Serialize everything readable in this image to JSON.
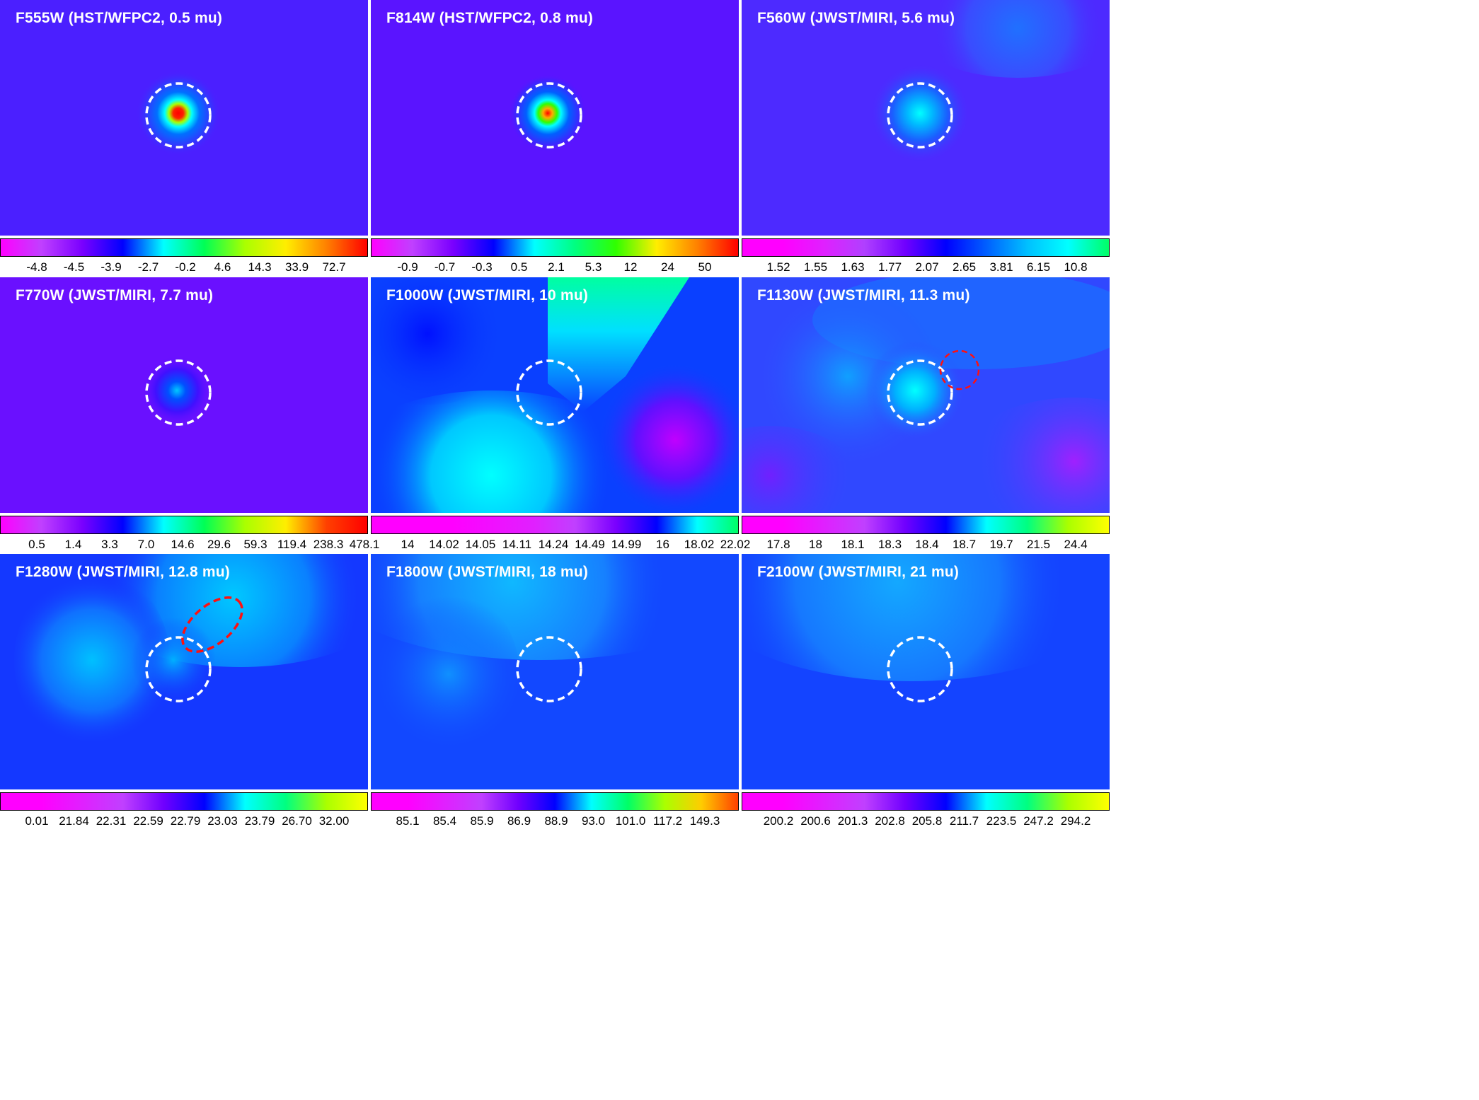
{
  "panels": [
    {
      "title": "F555W (HST/WFPC2, 0.5 mu)",
      "background": "#4b1fff",
      "colorbar": {
        "colors": [
          "#ff00ff",
          "#c040ff",
          "#7a00ff",
          "#0000ff",
          "#00ffff",
          "#00ff55",
          "#aaff00",
          "#ffee00",
          "#ff8000",
          "#ff0000"
        ],
        "ticks": [
          "-4.8",
          "-4.5",
          "-3.9",
          "-2.7",
          "-0.2",
          "4.6",
          "14.3",
          "33.9",
          "72.7"
        ]
      },
      "circles": [
        {
          "color": "white"
        }
      ]
    },
    {
      "title": "F814W (HST/WFPC2, 0.8 mu)",
      "background": "#5a14ff",
      "colorbar": {
        "colors": [
          "#ff00ff",
          "#c040ff",
          "#7a00ff",
          "#0000ff",
          "#00ffff",
          "#00ff80",
          "#30ff00",
          "#ffee00",
          "#ff8000",
          "#ff0000"
        ],
        "ticks": [
          "-0.9",
          "-0.7",
          "-0.3",
          "0.5",
          "2.1",
          "5.3",
          "12",
          "24",
          "50"
        ]
      },
      "circles": [
        {
          "color": "white"
        }
      ]
    },
    {
      "title": "F560W (JWST/MIRI, 5.6 mu)",
      "background": "#4d2aff",
      "colorbar": {
        "colors": [
          "#ff00ff",
          "#ff00ff",
          "#e020ff",
          "#b040ff",
          "#7000ff",
          "#0000ff",
          "#0060ff",
          "#00c0ff",
          "#00ffff",
          "#00ff66"
        ],
        "ticks": [
          "1.52",
          "1.55",
          "1.63",
          "1.77",
          "2.07",
          "2.65",
          "3.81",
          "6.15",
          "10.8"
        ]
      },
      "circles": [
        {
          "color": "white"
        }
      ]
    },
    {
      "title": "F770W (JWST/MIRI, 7.7 mu)",
      "background": "#6a10ff",
      "colorbar": {
        "colors": [
          "#ff00ff",
          "#c040ff",
          "#7a00ff",
          "#0000ff",
          "#00ffff",
          "#00ff55",
          "#aaff00",
          "#ffee00",
          "#ff4000",
          "#ff0000"
        ],
        "ticks": [
          "0.5",
          "1.4",
          "3.3",
          "7.0",
          "14.6",
          "29.6",
          "59.3",
          "119.4",
          "238.3",
          "478.1"
        ]
      },
      "circles": [
        {
          "color": "white"
        }
      ]
    },
    {
      "title": "F1000W (JWST/MIRI, 10 mu)",
      "background": "#0a40ff",
      "colorbar": {
        "colors": [
          "#ff00ff",
          "#ff00ff",
          "#ff00ff",
          "#f010ff",
          "#e020ff",
          "#c040ff",
          "#7a00ff",
          "#0000ff",
          "#00ffff",
          "#00ff66"
        ],
        "ticks": [
          "14",
          "14.02",
          "14.05",
          "14.11",
          "14.24",
          "14.49",
          "14.99",
          "16",
          "18.02",
          "22.02"
        ]
      },
      "circles": [
        {
          "color": "white"
        }
      ]
    },
    {
      "title": "F1130W (JWST/MIRI, 11.3 mu)",
      "background": "#3048ff",
      "colorbar": {
        "colors": [
          "#ff00ff",
          "#ff00ff",
          "#e020ff",
          "#c040ff",
          "#7000ff",
          "#0000ff",
          "#00ffff",
          "#00ff80",
          "#aaff00",
          "#ffff00"
        ],
        "ticks": [
          "17.8",
          "18",
          "18.1",
          "18.3",
          "18.4",
          "18.7",
          "19.7",
          "21.5",
          "24.4"
        ]
      },
      "circles": [
        {
          "color": "white"
        },
        {
          "color": "red"
        }
      ]
    },
    {
      "title": "F1280W (JWST/MIRI, 12.8 mu)",
      "background": "#1438ff",
      "colorbar": {
        "colors": [
          "#ff00ff",
          "#ff00ff",
          "#e020ff",
          "#c040ff",
          "#7000ff",
          "#0000ff",
          "#00ffff",
          "#00ff80",
          "#aaff00",
          "#ffff00"
        ],
        "ticks": [
          "0.01",
          "21.84",
          "22.31",
          "22.59",
          "22.79",
          "23.03",
          "23.79",
          "26.70",
          "32.00"
        ]
      },
      "circles": [
        {
          "color": "white"
        },
        {
          "color": "red",
          "shape": "ellipse"
        }
      ]
    },
    {
      "title": "F1800W (JWST/MIRI, 18 mu)",
      "background": "#1248ff",
      "colorbar": {
        "colors": [
          "#ff00ff",
          "#ff00ff",
          "#e020ff",
          "#c040ff",
          "#7000ff",
          "#0000ff",
          "#00ffff",
          "#00ff66",
          "#aaff00",
          "#ffcc00",
          "#ff4000"
        ],
        "ticks": [
          "85.1",
          "85.4",
          "85.9",
          "86.9",
          "88.9",
          "93.0",
          "101.0",
          "117.2",
          "149.3"
        ]
      },
      "circles": [
        {
          "color": "white"
        }
      ]
    },
    {
      "title": "F2100W (JWST/MIRI, 21 mu)",
      "background": "#1444ff",
      "colorbar": {
        "colors": [
          "#ff00ff",
          "#ff00ff",
          "#e020ff",
          "#c040ff",
          "#7000ff",
          "#0000ff",
          "#00ffff",
          "#00ff80",
          "#aaff00",
          "#ffff00"
        ],
        "ticks": [
          "200.2",
          "200.6",
          "201.3",
          "202.8",
          "205.8",
          "211.7",
          "223.5",
          "247.2",
          "294.2"
        ]
      },
      "circles": [
        {
          "color": "white"
        }
      ]
    }
  ]
}
